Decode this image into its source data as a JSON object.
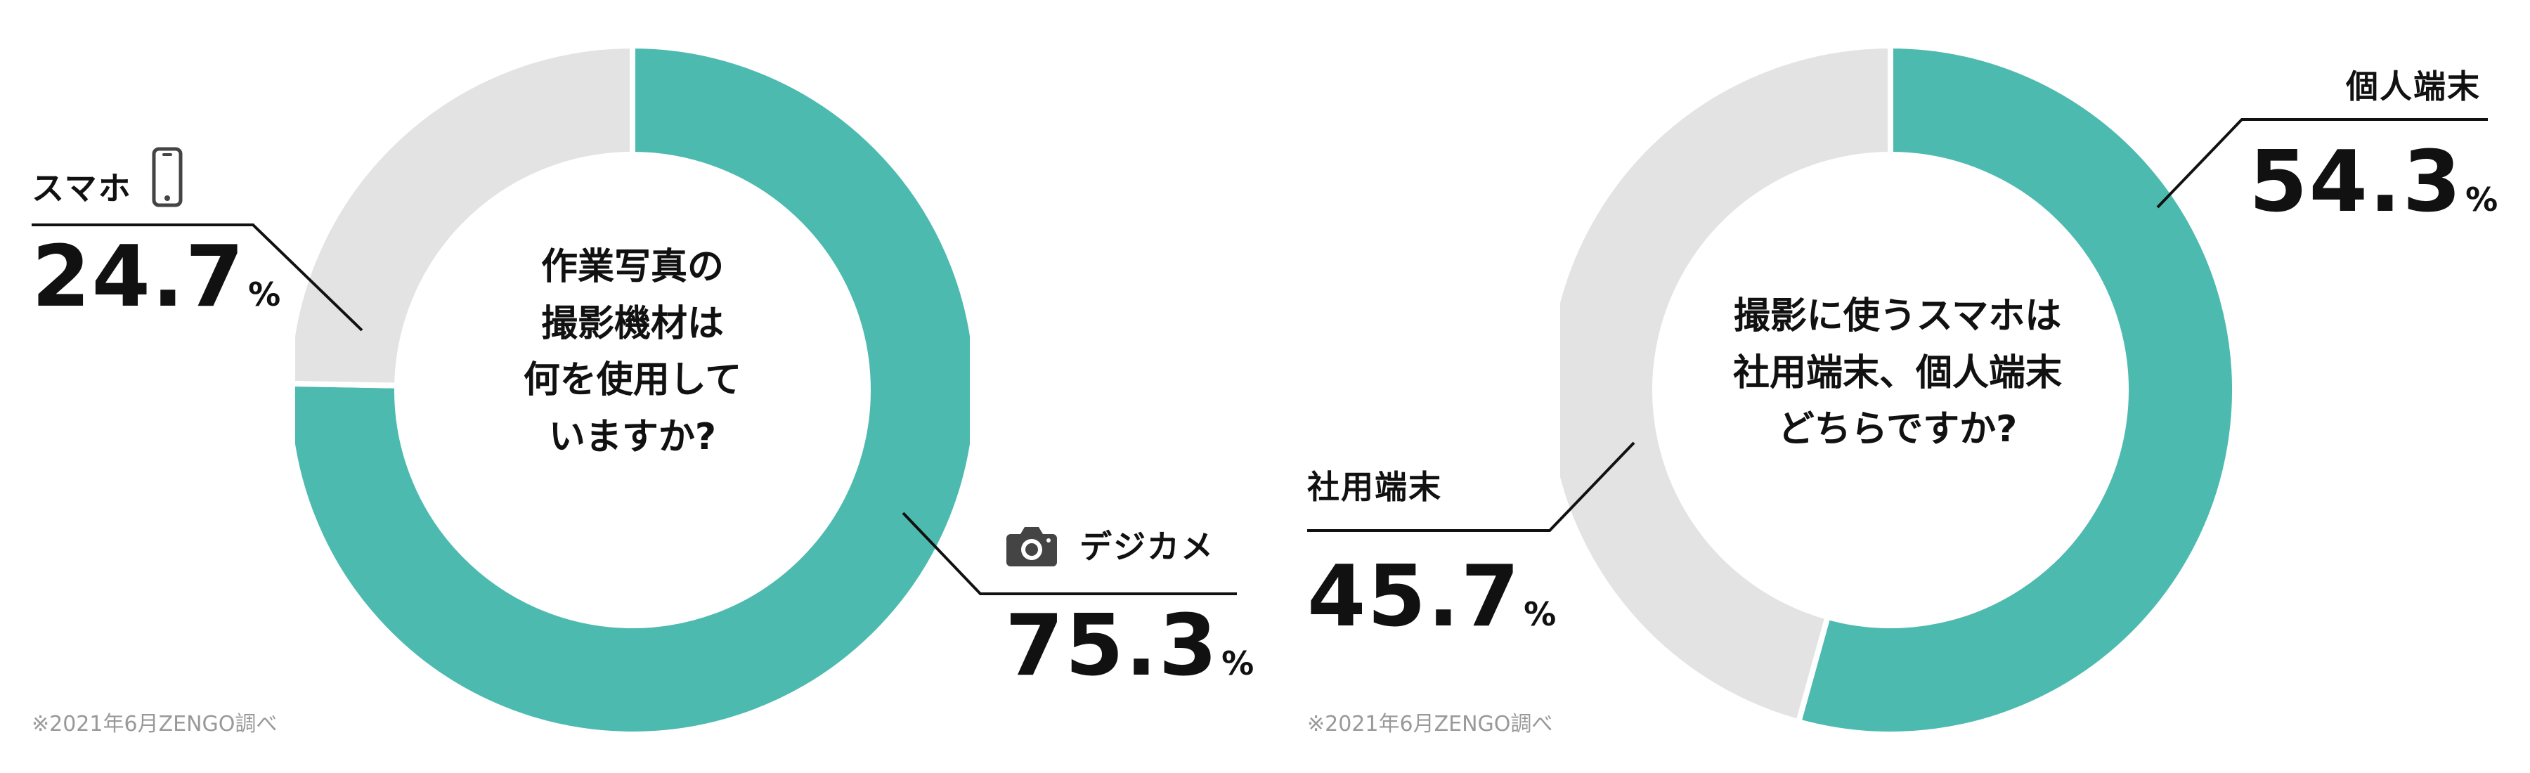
{
  "colors": {
    "primary": "#4dbab0",
    "secondary": "#e3e3e3",
    "line": "#111111",
    "note": "#999999"
  },
  "chart_data": [
    {
      "type": "pie",
      "title": "作業写真の撮影機材は何を使用していますか?",
      "title_lines": [
        "作業写真の",
        "撮影機材は",
        "何を使用して",
        "いますか?"
      ],
      "categories": [
        "デジカメ",
        "スマホ"
      ],
      "values": [
        75.3,
        24.7
      ],
      "labels": [
        {
          "category": "デジカメ",
          "value": "75.3",
          "unit": "%",
          "icon": "camera-icon"
        },
        {
          "category": "スマホ",
          "value": "24.7",
          "unit": "%",
          "icon": "smartphone-icon"
        }
      ],
      "note": "※2021年6月ZENGO調べ"
    },
    {
      "type": "pie",
      "title": "撮影に使うスマホは社用端末、個人端末どちらですか?",
      "title_lines": [
        "撮影に使うスマホは",
        "社用端末、個人端末",
        "どちらですか?"
      ],
      "categories": [
        "個人端末",
        "社用端末"
      ],
      "values": [
        54.3,
        45.7
      ],
      "labels": [
        {
          "category": "個人端末",
          "value": "54.3",
          "unit": "%"
        },
        {
          "category": "社用端末",
          "value": "45.7",
          "unit": "%"
        }
      ],
      "note": "※2021年6月ZENGO調べ"
    }
  ]
}
